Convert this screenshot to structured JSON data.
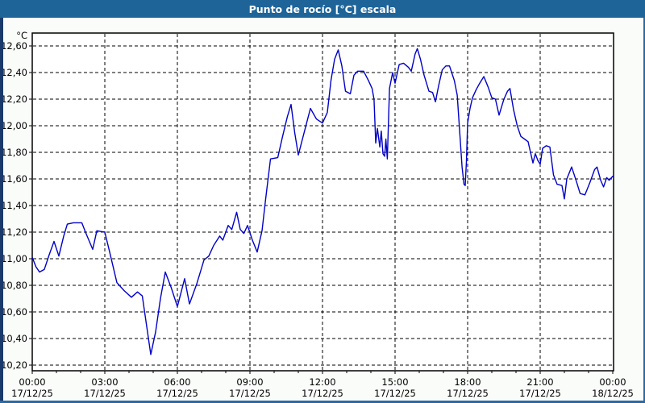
{
  "window": {
    "title": "Punto de rocío [°C] escala"
  },
  "colors": {
    "titlebar": "#1e6499",
    "title_text": "#ffffff",
    "window_bg": "#fafcfa",
    "plot_bg": "#ffffff",
    "plot_border": "#000000",
    "grid": "#000000",
    "tick_label": "#000000",
    "line": "#0000c8",
    "border_left": "#1a3a6b",
    "border_frame": "#2a6aa4"
  },
  "chart_data": {
    "type": "line",
    "title": "Punto de rocío [°C] escala",
    "y_unit": "°C",
    "ylim": [
      10.2,
      12.6
    ],
    "y_step": 0.2,
    "x_hours_range": [
      0,
      24
    ],
    "grid": "dashed",
    "legend_position": "none",
    "y_ticks": [
      {
        "value": 12.6,
        "label": "12,60"
      },
      {
        "value": 12.4,
        "label": "12,40"
      },
      {
        "value": 12.2,
        "label": "12,20"
      },
      {
        "value": 12.0,
        "label": "12,00"
      },
      {
        "value": 11.8,
        "label": "11,80"
      },
      {
        "value": 11.6,
        "label": "11,60"
      },
      {
        "value": 11.4,
        "label": "11,40"
      },
      {
        "value": 11.2,
        "label": "11,20"
      },
      {
        "value": 11.0,
        "label": "11,00"
      },
      {
        "value": 10.8,
        "label": "10,80"
      },
      {
        "value": 10.6,
        "label": "10,60"
      },
      {
        "value": 10.4,
        "label": "10,40"
      },
      {
        "value": 10.2,
        "label": "10,20"
      }
    ],
    "x_ticks": [
      {
        "hour": 0,
        "time": "00:00",
        "date": "17/12/25"
      },
      {
        "hour": 3,
        "time": "03:00",
        "date": "17/12/25"
      },
      {
        "hour": 6,
        "time": "06:00",
        "date": "17/12/25"
      },
      {
        "hour": 9,
        "time": "09:00",
        "date": "17/12/25"
      },
      {
        "hour": 12,
        "time": "12:00",
        "date": "17/12/25"
      },
      {
        "hour": 15,
        "time": "15:00",
        "date": "17/12/25"
      },
      {
        "hour": 18,
        "time": "18:00",
        "date": "17/12/25"
      },
      {
        "hour": 21,
        "time": "21:00",
        "date": "17/12/25"
      },
      {
        "hour": 24,
        "time": "00:00",
        "date": "18/12/25"
      }
    ],
    "series": [
      {
        "name": "Punto de rocío",
        "color": "#0000c8",
        "points": [
          [
            0.0,
            11.01
          ],
          [
            0.15,
            10.94
          ],
          [
            0.3,
            10.9
          ],
          [
            0.5,
            10.92
          ],
          [
            0.7,
            11.03
          ],
          [
            0.9,
            11.13
          ],
          [
            1.1,
            11.02
          ],
          [
            1.3,
            11.17
          ],
          [
            1.45,
            11.26
          ],
          [
            1.7,
            11.27
          ],
          [
            2.05,
            11.27
          ],
          [
            2.2,
            11.2
          ],
          [
            2.5,
            11.07
          ],
          [
            2.67,
            11.21
          ],
          [
            3.0,
            11.2
          ],
          [
            3.2,
            11.05
          ],
          [
            3.5,
            10.82
          ],
          [
            3.8,
            10.76
          ],
          [
            4.1,
            10.71
          ],
          [
            4.35,
            10.75
          ],
          [
            4.55,
            10.72
          ],
          [
            4.9,
            10.28
          ],
          [
            5.1,
            10.45
          ],
          [
            5.3,
            10.7
          ],
          [
            5.5,
            10.9
          ],
          [
            5.75,
            10.78
          ],
          [
            6.0,
            10.64
          ],
          [
            6.3,
            10.85
          ],
          [
            6.5,
            10.66
          ],
          [
            6.8,
            10.81
          ],
          [
            7.1,
            10.99
          ],
          [
            7.3,
            11.02
          ],
          [
            7.5,
            11.1
          ],
          [
            7.75,
            11.17
          ],
          [
            7.88,
            11.14
          ],
          [
            8.1,
            11.25
          ],
          [
            8.25,
            11.22
          ],
          [
            8.45,
            11.35
          ],
          [
            8.6,
            11.22
          ],
          [
            8.75,
            11.19
          ],
          [
            8.9,
            11.25
          ],
          [
            9.1,
            11.14
          ],
          [
            9.3,
            11.05
          ],
          [
            9.5,
            11.21
          ],
          [
            9.65,
            11.45
          ],
          [
            9.85,
            11.75
          ],
          [
            10.15,
            11.76
          ],
          [
            10.35,
            11.92
          ],
          [
            10.55,
            12.07
          ],
          [
            10.7,
            12.16
          ],
          [
            10.85,
            11.95
          ],
          [
            11.0,
            11.78
          ],
          [
            11.2,
            11.92
          ],
          [
            11.5,
            12.13
          ],
          [
            11.75,
            12.05
          ],
          [
            12.0,
            12.02
          ],
          [
            12.2,
            12.1
          ],
          [
            12.35,
            12.34
          ],
          [
            12.5,
            12.5
          ],
          [
            12.65,
            12.57
          ],
          [
            12.8,
            12.45
          ],
          [
            12.95,
            12.26
          ],
          [
            13.15,
            12.24
          ],
          [
            13.3,
            12.38
          ],
          [
            13.45,
            12.41
          ],
          [
            13.7,
            12.41
          ],
          [
            13.9,
            12.34
          ],
          [
            14.05,
            12.28
          ],
          [
            14.13,
            12.2
          ],
          [
            14.2,
            11.87
          ],
          [
            14.27,
            11.98
          ],
          [
            14.37,
            11.84
          ],
          [
            14.43,
            11.96
          ],
          [
            14.5,
            11.79
          ],
          [
            14.57,
            11.77
          ],
          [
            14.62,
            11.9
          ],
          [
            14.68,
            11.75
          ],
          [
            14.77,
            12.28
          ],
          [
            14.9,
            12.4
          ],
          [
            15.0,
            12.32
          ],
          [
            15.17,
            12.46
          ],
          [
            15.35,
            12.47
          ],
          [
            15.55,
            12.44
          ],
          [
            15.67,
            12.41
          ],
          [
            15.83,
            12.54
          ],
          [
            15.92,
            12.58
          ],
          [
            16.05,
            12.5
          ],
          [
            16.2,
            12.38
          ],
          [
            16.4,
            12.26
          ],
          [
            16.55,
            12.25
          ],
          [
            16.67,
            12.18
          ],
          [
            16.8,
            12.3
          ],
          [
            16.95,
            12.42
          ],
          [
            17.1,
            12.45
          ],
          [
            17.25,
            12.45
          ],
          [
            17.45,
            12.34
          ],
          [
            17.57,
            12.23
          ],
          [
            17.67,
            11.96
          ],
          [
            17.77,
            11.69
          ],
          [
            17.85,
            11.56
          ],
          [
            17.9,
            11.55
          ],
          [
            17.95,
            11.73
          ],
          [
            18.0,
            12.02
          ],
          [
            18.1,
            12.13
          ],
          [
            18.2,
            12.21
          ],
          [
            18.35,
            12.27
          ],
          [
            18.5,
            12.32
          ],
          [
            18.67,
            12.37
          ],
          [
            18.85,
            12.29
          ],
          [
            19.0,
            12.21
          ],
          [
            19.15,
            12.2
          ],
          [
            19.3,
            12.08
          ],
          [
            19.5,
            12.2
          ],
          [
            19.65,
            12.26
          ],
          [
            19.75,
            12.28
          ],
          [
            19.9,
            12.12
          ],
          [
            20.05,
            12.0
          ],
          [
            20.2,
            11.92
          ],
          [
            20.35,
            11.9
          ],
          [
            20.5,
            11.88
          ],
          [
            20.6,
            11.8
          ],
          [
            20.7,
            11.72
          ],
          [
            20.8,
            11.79
          ],
          [
            20.9,
            11.74
          ],
          [
            21.0,
            11.71
          ],
          [
            21.1,
            11.83
          ],
          [
            21.25,
            11.85
          ],
          [
            21.4,
            11.84
          ],
          [
            21.55,
            11.63
          ],
          [
            21.7,
            11.56
          ],
          [
            21.9,
            11.55
          ],
          [
            22.0,
            11.45
          ],
          [
            22.1,
            11.6
          ],
          [
            22.3,
            11.69
          ],
          [
            22.5,
            11.58
          ],
          [
            22.65,
            11.49
          ],
          [
            22.85,
            11.48
          ],
          [
            23.05,
            11.57
          ],
          [
            23.25,
            11.67
          ],
          [
            23.35,
            11.69
          ],
          [
            23.5,
            11.59
          ],
          [
            23.62,
            11.54
          ],
          [
            23.75,
            11.61
          ],
          [
            23.85,
            11.59
          ],
          [
            24.0,
            11.62
          ]
        ]
      }
    ]
  }
}
